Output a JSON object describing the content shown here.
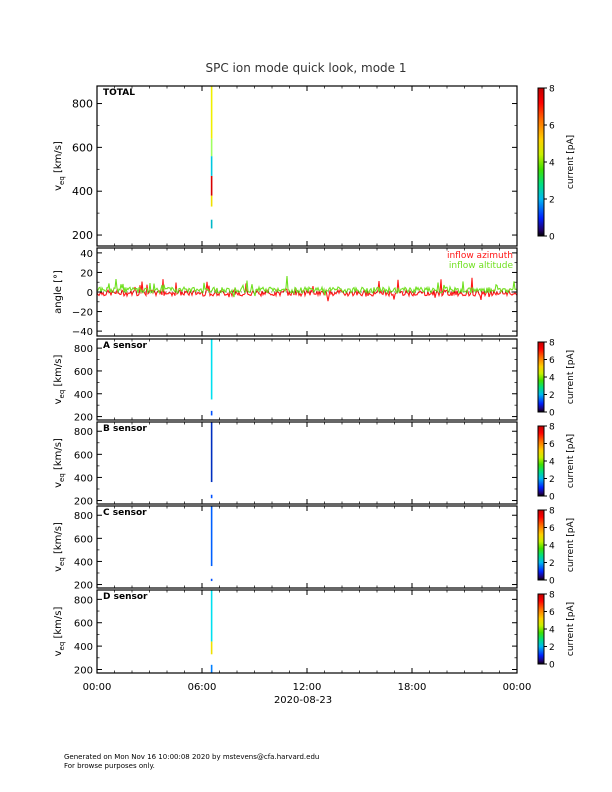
{
  "chart_data": {
    "title": "SPC ion mode quick look, mode 1",
    "type": "multi-panel spectrogram + line",
    "x_axis": {
      "range": [
        "00:00",
        "24:00"
      ],
      "tick_labels": [
        "00:00",
        "06:00",
        "12:00",
        "18:00",
        "00:00"
      ],
      "date_label": "2020-08-23"
    },
    "colorbar": {
      "label": "current [pA]",
      "ticks": [
        "0",
        "2",
        "4",
        "6",
        "8"
      ],
      "range": [
        0,
        8
      ]
    },
    "panels": [
      {
        "id": "total",
        "type": "heatmap",
        "label": "TOTAL",
        "ylabel": "v",
        "ylabel_sub": "eq",
        "ylabel_units": "[km/s]",
        "ylim": [
          150,
          880
        ],
        "ytick_labels": [
          "200",
          "400",
          "600",
          "800"
        ],
        "event_hour": 6.55,
        "event_segments": [
          {
            "vmin": 230,
            "vmax": 270,
            "color": "#00b8c8"
          },
          {
            "vmin": 330,
            "vmax": 380,
            "color": "#f0e000"
          },
          {
            "vmin": 380,
            "vmax": 470,
            "color": "#d80000"
          },
          {
            "vmin": 470,
            "vmax": 560,
            "color": "#00c8e0"
          },
          {
            "vmin": 560,
            "vmax": 640,
            "color": "#a0ff60"
          },
          {
            "vmin": 640,
            "vmax": 880,
            "color": "#f0f000"
          }
        ]
      },
      {
        "id": "angle",
        "type": "line",
        "ylabel": "angle [°]",
        "ylim": [
          -45,
          45
        ],
        "ytick_labels": [
          "40",
          "20",
          "0",
          "−20",
          "−40"
        ],
        "series": [
          {
            "name": "inflow azimuth",
            "color": "#ff1818",
            "mean": -1,
            "spread": 3,
            "spikes_up": 16
          },
          {
            "name": "inflow altitude",
            "color": "#70e020",
            "mean": 2,
            "spread": 3,
            "spikes_up": 12
          }
        ]
      },
      {
        "id": "A",
        "type": "heatmap",
        "label": "A sensor",
        "ylabel": "v",
        "ylabel_sub": "eq",
        "ylabel_units": "[km/s]",
        "ylim": [
          170,
          880
        ],
        "ytick_labels": [
          "200",
          "400",
          "600",
          "800"
        ],
        "event_hour": 6.55,
        "event_segments": [
          {
            "vmin": 210,
            "vmax": 250,
            "color": "#0050ff"
          },
          {
            "vmin": 350,
            "vmax": 880,
            "color": "#00e0f0"
          }
        ]
      },
      {
        "id": "B",
        "type": "heatmap",
        "label": "B sensor",
        "ylabel": "v",
        "ylabel_sub": "eq",
        "ylabel_units": "[km/s]",
        "ylim": [
          170,
          880
        ],
        "ytick_labels": [
          "200",
          "400",
          "600",
          "800"
        ],
        "event_hour": 6.55,
        "event_segments": [
          {
            "vmin": 220,
            "vmax": 250,
            "color": "#0050ff"
          },
          {
            "vmin": 360,
            "vmax": 880,
            "color": "#0030c0"
          }
        ]
      },
      {
        "id": "C",
        "type": "heatmap",
        "label": "C sensor",
        "ylabel": "v",
        "ylabel_sub": "eq",
        "ylabel_units": "[km/s]",
        "ylim": [
          170,
          880
        ],
        "ytick_labels": [
          "200",
          "400",
          "600",
          "800"
        ],
        "event_hour": 6.55,
        "event_segments": [
          {
            "vmin": 230,
            "vmax": 250,
            "color": "#0050ff"
          },
          {
            "vmin": 360,
            "vmax": 880,
            "color": "#0060ff"
          }
        ]
      },
      {
        "id": "D",
        "type": "heatmap",
        "label": "D sensor",
        "ylabel": "v",
        "ylabel_sub": "eq",
        "ylabel_units": "[km/s]",
        "ylim": [
          170,
          880
        ],
        "ytick_labels": [
          "200",
          "400",
          "600",
          "800"
        ],
        "event_hour": 6.55,
        "event_segments": [
          {
            "vmin": 170,
            "vmax": 240,
            "color": "#0080ff"
          },
          {
            "vmin": 330,
            "vmax": 440,
            "color": "#f0e000"
          },
          {
            "vmin": 440,
            "vmax": 880,
            "color": "#00e0f0"
          }
        ]
      }
    ]
  },
  "footer": {
    "line1": "Generated on Mon Nov 16 10:00:08 2020 by mstevens@cfa.harvard.edu",
    "line2": "For browse purposes only."
  }
}
